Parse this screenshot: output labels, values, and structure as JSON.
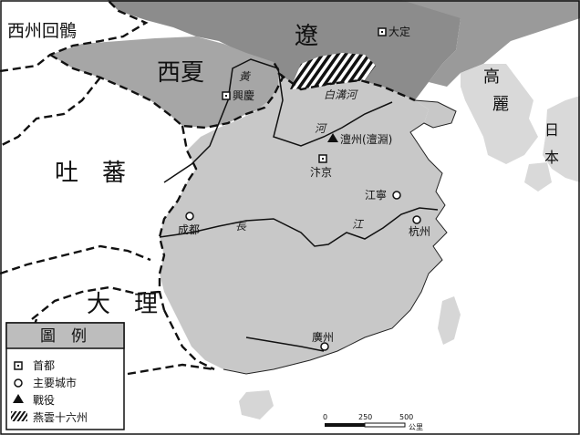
{
  "colors": {
    "ocean": "#ffffff",
    "song": "#c8c8c8",
    "liao": "#8c8c8c",
    "xixia": "#a6a6a6",
    "neighbor": "#d9d9d9",
    "border": "#111111"
  },
  "regions": {
    "xizhou_huihu": "西州回鶻",
    "liao": "遼",
    "xixia": "西夏",
    "tubo": "吐　蕃",
    "dali": "大　理",
    "goryeo_1": "高",
    "goryeo_2": "麗",
    "japan_1": "日",
    "japan_2": "本"
  },
  "cities": {
    "dading": "大定",
    "xingqing": "興慶",
    "chanzhou": "澶州(澶淵)",
    "bianjing": "汴京",
    "jiangning": "江寧",
    "chengdu": "成都",
    "hangzhou": "杭州",
    "guangzhou": "廣州"
  },
  "rivers": {
    "huang": "黃",
    "he": "河",
    "baigou": "白溝河",
    "chang": "長",
    "jiang": "江"
  },
  "legend": {
    "title": "圖　例",
    "items": [
      {
        "symbol": "square-icon",
        "label": "首都"
      },
      {
        "symbol": "circle-icon",
        "label": "主要城市"
      },
      {
        "symbol": "triangle-icon",
        "label": "戰役"
      },
      {
        "symbol": "hatch-icon",
        "label": "燕雲十六州"
      }
    ]
  },
  "scale": {
    "ticks": [
      "0",
      "250",
      "500"
    ],
    "unit": "公里"
  }
}
